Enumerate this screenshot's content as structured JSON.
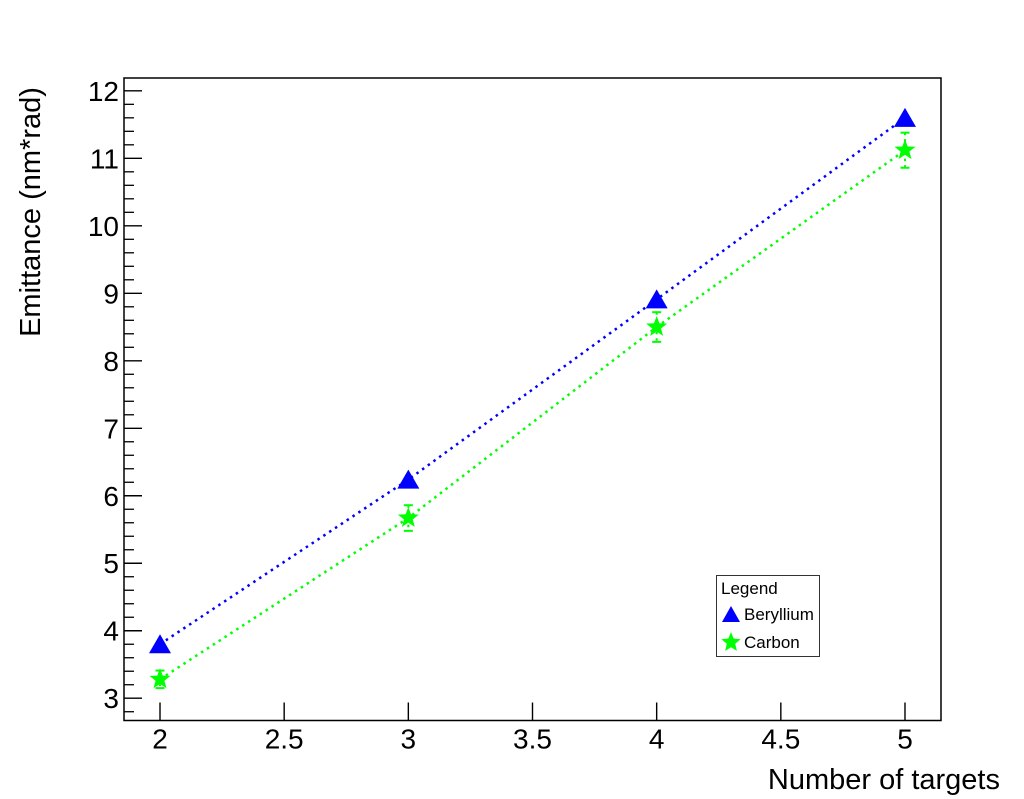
{
  "figure": {
    "background_color": "#ffffff",
    "axis_color": "#000000",
    "text_color": "#000000"
  },
  "axes": {
    "x_title": "Number of targets",
    "y_title": "Emittance (nm*rad)",
    "x_tick_labels": [
      "2",
      "2.5",
      "3",
      "3.5",
      "4",
      "4.5",
      "5"
    ],
    "y_tick_labels": [
      "3",
      "4",
      "5",
      "6",
      "7",
      "8",
      "9",
      "10",
      "11",
      "12"
    ]
  },
  "legend": {
    "title": "Legend",
    "entries": [
      {
        "label": "Beryllium",
        "marker": "triangle-icon",
        "color": "#0000ff"
      },
      {
        "label": "Carbon",
        "marker": "star-icon",
        "color": "#00ff00"
      }
    ]
  },
  "chart_data": {
    "type": "line",
    "title": "",
    "xlabel": "Number of targets",
    "ylabel": "Emittance (nm*rad)",
    "xlim": [
      1.855,
      5.145
    ],
    "ylim": [
      2.67,
      12.19
    ],
    "x_ticks": [
      2,
      2.5,
      3,
      3.5,
      4,
      4.5,
      5
    ],
    "y_ticks": [
      3,
      4,
      5,
      6,
      7,
      8,
      9,
      10,
      11,
      12
    ],
    "y_minor_step": 0.2,
    "grid": false,
    "line_style": "dotted",
    "legend": {
      "title": "Legend",
      "position": "inside-lower-right"
    },
    "x": [
      2,
      3,
      4,
      5
    ],
    "series": [
      {
        "name": "Beryllium",
        "color": "#0000ff",
        "marker": "triangle",
        "values": [
          3.8,
          6.24,
          8.91,
          11.6
        ],
        "yerr": null
      },
      {
        "name": "Carbon",
        "color": "#00ff00",
        "marker": "star",
        "values": [
          3.28,
          5.67,
          8.5,
          11.12
        ],
        "yerr": [
          0.13,
          0.19,
          0.22,
          0.26
        ]
      }
    ]
  }
}
